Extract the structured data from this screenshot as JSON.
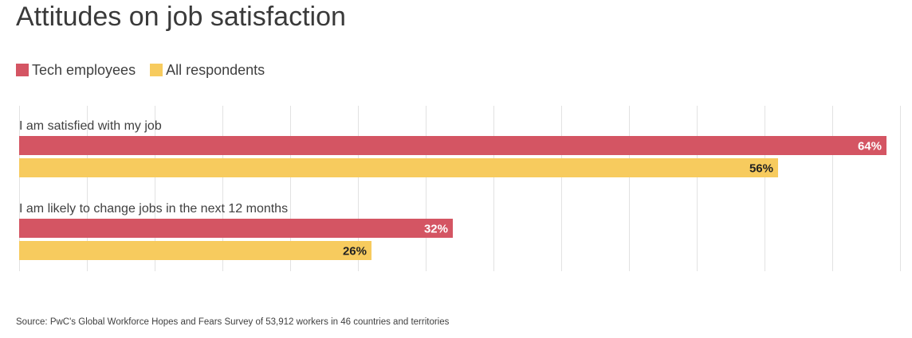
{
  "title": "Attitudes on job satisfaction",
  "source": "Source: PwC's Global Workforce Hopes and Fears Survey of 53,912 workers in 46 countries and territories",
  "chart_data": {
    "type": "bar",
    "orientation": "horizontal",
    "categories": [
      "I am satisfied with my job",
      "I am likely to change jobs in the next 12 months"
    ],
    "series": [
      {
        "name": "Tech employees",
        "color": "#d45563",
        "label_color": "#ffffff",
        "values": [
          64,
          32
        ]
      },
      {
        "name": "All respondents",
        "color": "#f7cb5e",
        "label_color": "#222222",
        "values": [
          56,
          26
        ]
      }
    ],
    "value_labels": [
      [
        "64%",
        "32%"
      ],
      [
        "56%",
        "26%"
      ]
    ],
    "xlim": [
      0,
      65
    ],
    "grid_step": 5,
    "grid": true,
    "legend_position": "top-left"
  }
}
